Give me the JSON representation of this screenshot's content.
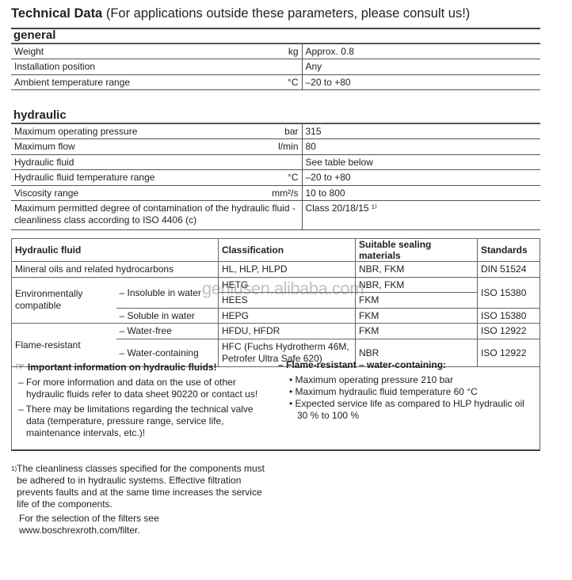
{
  "title": {
    "bold": "Technical Data",
    "rest": " (For applications outside these parameters, please consult us!)"
  },
  "general": {
    "heading": "general",
    "rows": [
      {
        "label": "Weight",
        "unit": "kg",
        "value": "Approx. 0.8"
      },
      {
        "label": "Installation position",
        "unit": "",
        "value": "Any"
      },
      {
        "label": "Ambient temperature range",
        "unit": "°C",
        "value": "–20 to +80"
      }
    ]
  },
  "hydraulic": {
    "heading": "hydraulic",
    "rows": [
      {
        "label": "Maximum operating pressure",
        "unit": "bar",
        "value": "315"
      },
      {
        "label": "Maximum flow",
        "unit": "l/min",
        "value": "80"
      },
      {
        "label": "Hydraulic fluid",
        "unit": "",
        "value": "See table below"
      },
      {
        "label": "Hydraulic fluid temperature range",
        "unit": "°C",
        "value": "–20 to +80"
      },
      {
        "label": "Viscosity range",
        "unit": "mm²/s",
        "value": "10 to 800"
      },
      {
        "label": "Maximum permitted degree of contamination of the hydraulic fluid - cleanliness class according to ISO 4406 (c)",
        "unit": "",
        "value": "Class 20/18/15 ¹⁾"
      }
    ]
  },
  "fluids": {
    "headers": [
      "Hydraulic fluid",
      "Classification",
      "Suitable sealing materials",
      "Standards"
    ],
    "mineral": {
      "fluid": "Mineral oils and related hydrocarbons",
      "class": "HL, HLP, HLPD",
      "seal": "NBR, FKM",
      "std": "DIN 51524"
    },
    "env": {
      "group": "Environmentally compatible",
      "insoluble": "– Insoluble in water",
      "hetg": "HETG",
      "hetg_seal": "NBR, FKM",
      "hees": "HEES",
      "hees_seal": "FKM",
      "insoluble_std": "ISO 15380",
      "soluble": "– Soluble in water",
      "hepg": "HEPG",
      "hepg_seal": "FKM",
      "soluble_std": "ISO 15380"
    },
    "flame": {
      "group": "Flame-resistant",
      "free": "– Water-free",
      "free_class": "HFDU, HFDR",
      "free_seal": "FKM",
      "free_std": "ISO 12922",
      "cont": "– Water-containing",
      "cont_class": "HFC (Fuchs Hydrotherm 46M, Petrofer Ultra Safe 620)",
      "cont_seal": "NBR",
      "cont_std": "ISO 12922"
    }
  },
  "watermark": "genlusen.alibaba.com",
  "note": {
    "heading": "Important information on hydraulic fluids!",
    "items": [
      "– For more information and data on the use of other hydraulic fluids refer to data sheet 90220 or contact us!",
      "– There may be limitations regarding the technical valve data (temperature, pressure range, service life, maintenance intervals, etc.)!"
    ],
    "right_heading": "– Flame-resistant – water-containing:",
    "bullets": [
      "• Maximum operating pressure 210 bar",
      "• Maximum hydraulic fluid temperature 60 °C",
      "• Expected service life as compared to HLP hydraulic oil 30 % to 100 %"
    ]
  },
  "footnote": {
    "mark": "1)",
    "text": "The cleanliness classes specified for the components must be adhered to in hydraulic systems. Effective filtration prevents faults and at the same time increases the service life of the components.",
    "filter": "For the selection of the filters see www.boschrexroth.com/filter."
  }
}
